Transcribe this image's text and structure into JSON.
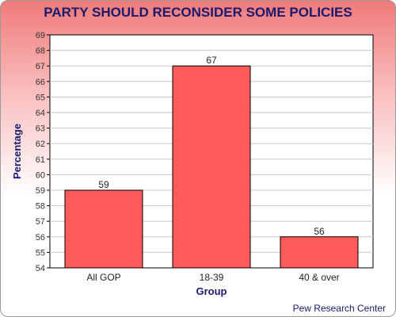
{
  "chart_data": {
    "type": "bar",
    "title": "PARTY SHOULD RECONSIDER SOME POLICIES",
    "xlabel": "Group",
    "ylabel": "Percentage",
    "categories": [
      "All GOP",
      "18-39",
      "40 & over"
    ],
    "values": [
      59,
      67,
      56
    ],
    "ylim": [
      54,
      69
    ],
    "ytick_step": 1,
    "grid": true,
    "bar_color": "#ff5a5a",
    "source": "Pew Research Center"
  }
}
